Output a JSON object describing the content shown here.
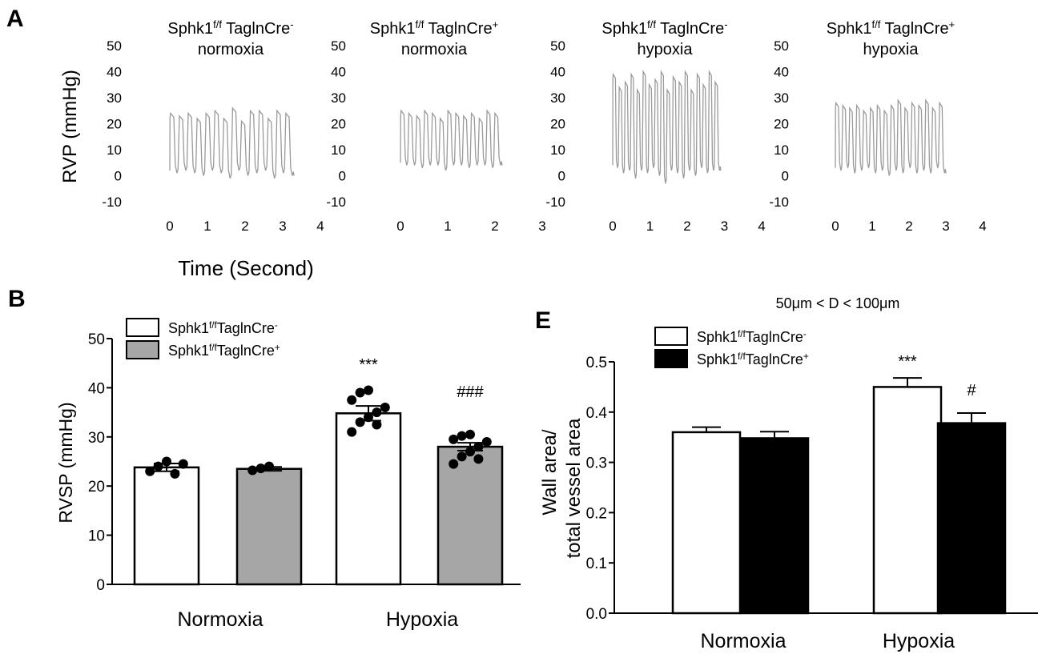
{
  "panel_labels": {
    "a": "A",
    "b": "B",
    "e": "E"
  },
  "panel_a": {
    "ylabel": "RVP (mmHg)",
    "xlabel": "Time (Second)",
    "y_ticks": [
      "50",
      "40",
      "30",
      "20",
      "10",
      "0",
      "-10"
    ],
    "trace_color": "#9a9a9a"
  },
  "colors": {
    "white_bar": "#ffffff",
    "gray_bar": "#a6a6a6",
    "black_bar": "#000000",
    "axis": "#000000"
  },
  "chart_data": [
    {
      "type": "line",
      "panel": "A1",
      "title_lines": [
        "Sphk1f/f TaglnCre-",
        "normoxia"
      ],
      "title_parts": [
        {
          "text": "Sphk1",
          "sup": "f/f",
          "rest": " TaglnCre",
          "tail_sup": "-"
        },
        {
          "text": "normoxia"
        }
      ],
      "xlim": [
        -0.2,
        4
      ],
      "ylim": [
        -10,
        50
      ],
      "x_ticks": [
        "0",
        "1",
        "2",
        "3",
        "4"
      ],
      "duration": 3.3,
      "beats": 14,
      "peaks": [
        24,
        23,
        24,
        22,
        24,
        25,
        22,
        26,
        21,
        25,
        25,
        22,
        25,
        24
      ],
      "troughs": [
        1,
        2,
        1,
        0,
        2,
        1,
        -1,
        2,
        0,
        1,
        2,
        -1,
        1,
        0
      ]
    },
    {
      "type": "line",
      "panel": "A2",
      "title_lines": [
        "Sphk1f/f TaglnCre+",
        "normoxia"
      ],
      "title_parts": [
        {
          "text": "Sphk1",
          "sup": "f/f",
          "rest": " TaglnCre",
          "tail_sup": "+"
        },
        {
          "text": "normoxia"
        }
      ],
      "xlim": [
        -0.2,
        3
      ],
      "ylim": [
        -10,
        50
      ],
      "x_ticks": [
        "0",
        "1",
        "2",
        "3"
      ],
      "duration": 2.15,
      "beats": 13,
      "peaks": [
        25,
        24,
        23,
        25,
        24,
        22,
        25,
        24,
        23,
        24,
        22,
        25,
        24
      ],
      "troughs": [
        4,
        4,
        3,
        4,
        4,
        2,
        4,
        4,
        3,
        4,
        4,
        3,
        4
      ],
      "end_value": 4
    },
    {
      "type": "line",
      "panel": "A3",
      "title_lines": [
        "Sphk1f/f TaglnCre-",
        "hypoxia"
      ],
      "title_parts": [
        {
          "text": "Sphk1",
          "sup": "f/f",
          "rest": " TaglnCre",
          "tail_sup": "-"
        },
        {
          "text": "hypoxia"
        }
      ],
      "xlim": [
        -0.2,
        4
      ],
      "ylim": [
        -10,
        50
      ],
      "x_ticks": [
        "0",
        "1",
        "2",
        "3",
        "4"
      ],
      "duration": 2.9,
      "beats": 18,
      "peaks": [
        39,
        34,
        36,
        39,
        33,
        40,
        35,
        37,
        40,
        33,
        38,
        36,
        40,
        33,
        39,
        35,
        40,
        36
      ],
      "troughs": [
        3,
        1,
        2,
        -1,
        2,
        1,
        3,
        0,
        -3,
        2,
        1,
        -1,
        2,
        0,
        3,
        1,
        2,
        2
      ]
    },
    {
      "type": "line",
      "panel": "A4",
      "title_lines": [
        "Sphk1f/f TaglnCre+",
        "hypoxia"
      ],
      "title_parts": [
        {
          "text": "Sphk1",
          "sup": "f/f",
          "rest": " TaglnCre",
          "tail_sup": "+"
        },
        {
          "text": "hypoxia"
        }
      ],
      "xlim": [
        -0.2,
        4
      ],
      "ylim": [
        -10,
        50
      ],
      "x_ticks": [
        "0",
        "1",
        "2",
        "3",
        "4"
      ],
      "duration": 3.0,
      "beats": 16,
      "peaks": [
        28,
        27,
        26,
        27,
        25,
        26,
        27,
        25,
        27,
        29,
        26,
        28,
        27,
        29,
        26,
        28
      ],
      "troughs": [
        2,
        3,
        1,
        2,
        3,
        1,
        2,
        0,
        2,
        1,
        3,
        1,
        2,
        1,
        3,
        1
      ]
    },
    {
      "type": "bar",
      "panel": "B",
      "ylabel": "RVSP (mmHg)",
      "ylim": [
        0,
        50
      ],
      "y_ticks": [
        "0",
        "10",
        "20",
        "30",
        "40",
        "50"
      ],
      "categories": [
        "Normoxia",
        "Hypoxia"
      ],
      "series": [
        {
          "name": "Sphk1f/fTaglnCre-",
          "name_parts": {
            "a": "Sphk1",
            "sup": "f/f",
            "b": "TaglnCre",
            "tail": "-"
          },
          "color": "#ffffff",
          "values": [
            23.8,
            34.8
          ],
          "errors": [
            0.8,
            1.5
          ],
          "points": [
            [
              23,
              24,
              25,
              22.5,
              24.5
            ],
            [
              31,
              33,
              34,
              35,
              36,
              37.5,
              39,
              39.5,
              32.5
            ]
          ]
        },
        {
          "name": "Sphk1f/fTaglnCre+",
          "name_parts": {
            "a": "Sphk1",
            "sup": "f/f",
            "b": "TaglnCre",
            "tail": "+"
          },
          "color": "#a6a6a6",
          "values": [
            23.5,
            28.0
          ],
          "errors": [
            0.4,
            0.8
          ],
          "points": [
            [
              23.2,
              23.6,
              24
            ],
            [
              24.5,
              26,
              27,
              28,
              29,
              29.5,
              30.2,
              30.5,
              25.5
            ]
          ]
        }
      ],
      "annotations": [
        "***",
        "###"
      ]
    },
    {
      "type": "bar",
      "panel": "E",
      "title": "50μm < D < 100μm",
      "ylabel_lines": [
        "Wall area/",
        "total vessel area"
      ],
      "ylim": [
        0,
        0.5
      ],
      "y_ticks": [
        "0.0",
        "0.1",
        "0.2",
        "0.3",
        "0.4",
        "0.5"
      ],
      "categories": [
        "Normoxia",
        "Hypoxia"
      ],
      "series": [
        {
          "name": "Sphk1f/fTaglnCre-",
          "name_parts": {
            "a": "Sphk1",
            "sup": "f/f",
            "b": "TaglnCre",
            "tail": "-"
          },
          "color": "#ffffff",
          "values": [
            0.36,
            0.45
          ],
          "errors": [
            0.01,
            0.018
          ]
        },
        {
          "name": "Sphk1f/fTaglnCre+",
          "name_parts": {
            "a": "Sphk1",
            "sup": "f/f",
            "b": "TaglnCre",
            "tail": "+"
          },
          "color": "#000000",
          "values": [
            0.348,
            0.378
          ],
          "errors": [
            0.013,
            0.02
          ]
        }
      ],
      "annotations": [
        "***",
        "#"
      ]
    }
  ]
}
